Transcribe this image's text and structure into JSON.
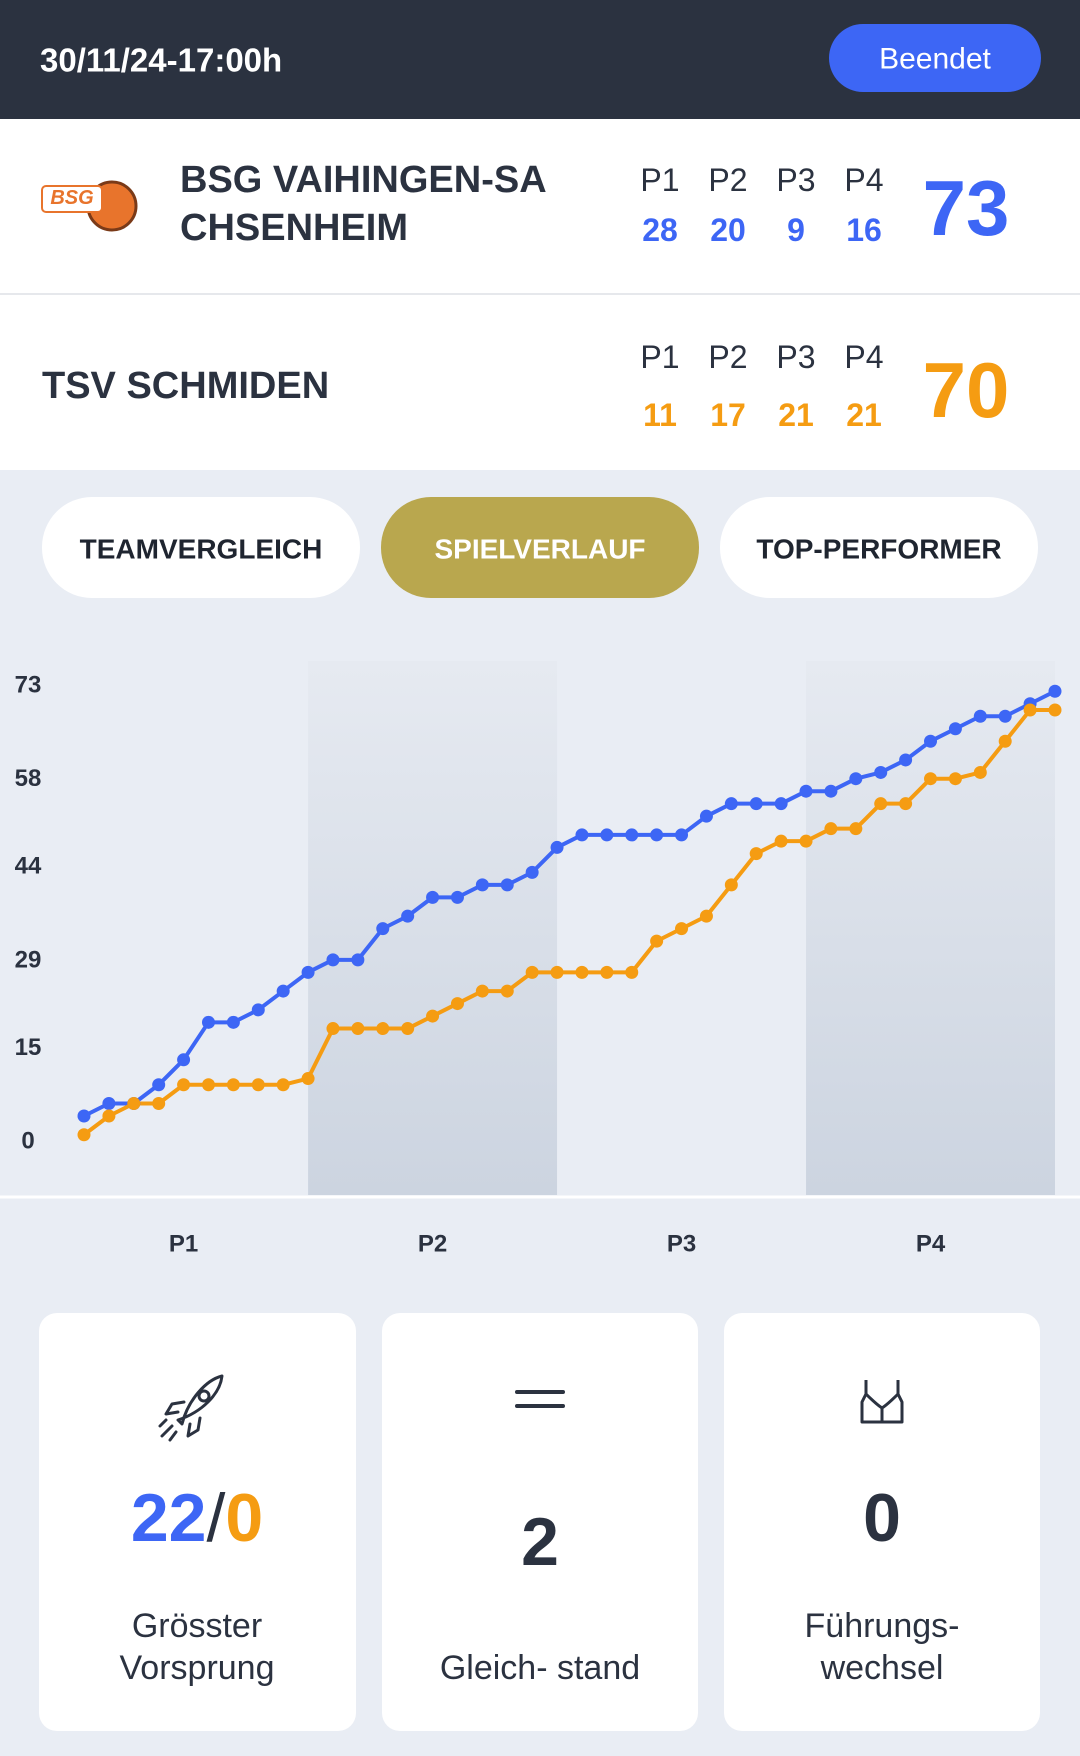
{
  "header": {
    "date": "30/11/24-17:00h",
    "status": "Beendet"
  },
  "teams": [
    {
      "logo_text": "BSG",
      "name_lines": [
        "BSG VAIHINGEN-SA",
        "CHSENHEIM"
      ],
      "color": "#3d66f5",
      "quarters": [
        {
          "label": "P1",
          "score": 28
        },
        {
          "label": "P2",
          "score": 20
        },
        {
          "label": "P3",
          "score": 9
        },
        {
          "label": "P4",
          "score": 16
        }
      ],
      "total": 73
    },
    {
      "name_lines": [
        "TSV SCHMIDEN"
      ],
      "color": "#f59c12",
      "quarters": [
        {
          "label": "P1",
          "score": 11
        },
        {
          "label": "P2",
          "score": 17
        },
        {
          "label": "P3",
          "score": 21
        },
        {
          "label": "P4",
          "score": 21
        }
      ],
      "total": 70
    }
  ],
  "tabs": {
    "items": [
      "TEAMVERGLEICH",
      "SPIELVERLAUF",
      "TOP-PERFORMER"
    ],
    "active": 1
  },
  "chart_data": {
    "type": "line",
    "periods": [
      "P1",
      "P2",
      "P3",
      "P4"
    ],
    "ylim": [
      0,
      73
    ],
    "yticks": [
      0,
      15,
      29,
      44,
      58,
      73
    ],
    "series": [
      {
        "color": "#3d66f5",
        "values": [
          4,
          6,
          6,
          9,
          13,
          19,
          19,
          21,
          24,
          27,
          29,
          29,
          34,
          36,
          39,
          39,
          41,
          41,
          43,
          47,
          49,
          49,
          49,
          49,
          49,
          52,
          54,
          54,
          54,
          56,
          56,
          58,
          59,
          61,
          64,
          66,
          68,
          68,
          70,
          72
        ]
      },
      {
        "color": "#f59c12",
        "values": [
          1,
          4,
          6,
          6,
          9,
          9,
          9,
          9,
          9,
          10,
          18,
          18,
          18,
          18,
          20,
          22,
          24,
          24,
          27,
          27,
          27,
          27,
          27,
          32,
          34,
          36,
          41,
          46,
          48,
          48,
          50,
          50,
          54,
          54,
          58,
          58,
          59,
          64,
          69,
          69
        ]
      }
    ]
  },
  "stats": {
    "largest_lead": {
      "home": 22,
      "separator": "/",
      "away": 0,
      "label_lines": [
        "Grösster",
        "Vorsprung"
      ]
    },
    "ties": {
      "value": 2,
      "label_lines": [
        "Gleich- stand"
      ]
    },
    "lead_changes": {
      "value": 0,
      "label_lines": [
        "Führungs-",
        "wechsel"
      ]
    }
  }
}
